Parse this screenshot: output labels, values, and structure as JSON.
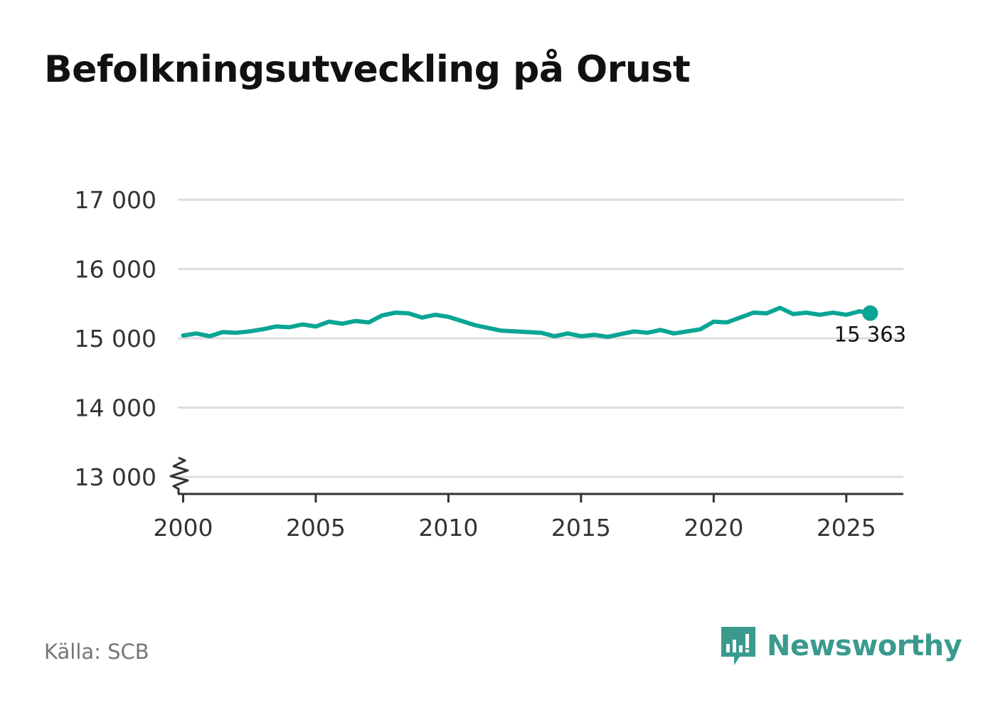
{
  "title": "Befolkningsutveckling på Orust",
  "source": "Källa: SCB",
  "brand": {
    "name": "Newsworthy",
    "icon": "newsworthy-logo-icon",
    "color": "#3a9a8e"
  },
  "colors": {
    "line": "#0aa594",
    "grid": "#dddddd",
    "axis": "#333333"
  },
  "chart_data": {
    "type": "line",
    "ylim": [
      12750,
      17000
    ],
    "yticks": [
      17000,
      16000,
      15000,
      14000,
      13000
    ],
    "ytick_labels": [
      "17 000",
      "16 000",
      "15 000",
      "14 000",
      "13 000"
    ],
    "xlim": [
      1999.8,
      2027.15
    ],
    "xticks": [
      2000,
      2005,
      2010,
      2015,
      2020,
      2025
    ],
    "xtick_labels": [
      "2000",
      "2005",
      "2010",
      "2015",
      "2020",
      "2025"
    ],
    "axis_break": true,
    "grid": true,
    "last_label": "15 363",
    "series": [
      {
        "x": [
          2000.0,
          2000.5,
          2001.0,
          2001.5,
          2002.0,
          2002.5,
          2003.0,
          2003.5,
          2004.0,
          2004.5,
          2005.0,
          2005.5,
          2006.0,
          2006.5,
          2007.0,
          2007.5,
          2008.0,
          2008.5,
          2009.0,
          2009.5,
          2010.0,
          2010.5,
          2011.0,
          2011.5,
          2012.0,
          2012.5,
          2013.0,
          2013.5,
          2014.0,
          2014.5,
          2015.0,
          2015.5,
          2016.0,
          2016.5,
          2017.0,
          2017.5,
          2018.0,
          2018.5,
          2019.0,
          2019.5,
          2020.0,
          2020.5,
          2021.0,
          2021.5,
          2022.0,
          2022.5,
          2023.0,
          2023.5,
          2024.0,
          2024.5,
          2025.0,
          2025.5,
          2025.9
        ],
        "values": [
          15040,
          15070,
          15030,
          15090,
          15080,
          15100,
          15130,
          15170,
          15160,
          15200,
          15170,
          15240,
          15210,
          15250,
          15230,
          15330,
          15370,
          15360,
          15300,
          15340,
          15310,
          15250,
          15190,
          15150,
          15110,
          15100,
          15090,
          15080,
          15030,
          15070,
          15030,
          15050,
          15020,
          15060,
          15100,
          15080,
          15120,
          15070,
          15100,
          15130,
          15240,
          15230,
          15300,
          15370,
          15360,
          15440,
          15350,
          15370,
          15340,
          15370,
          15340,
          15390,
          15363
        ]
      }
    ]
  }
}
